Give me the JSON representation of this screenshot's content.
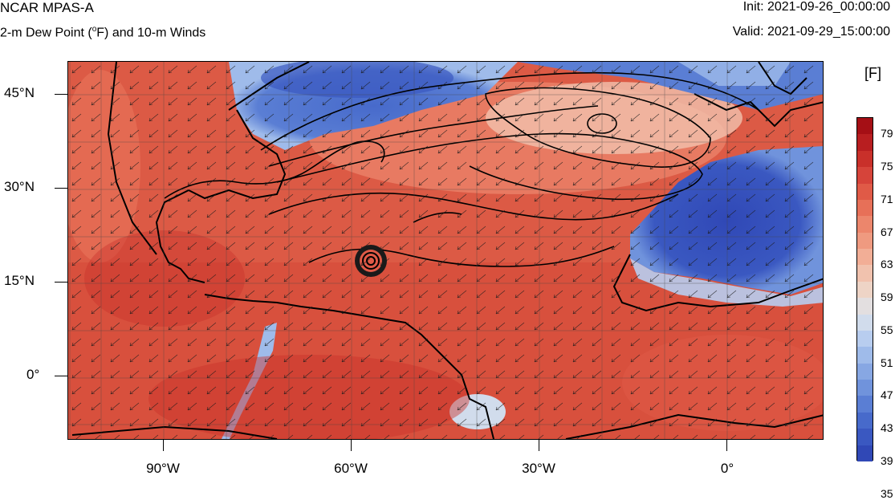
{
  "header": {
    "title": "NCAR MPAS-A",
    "subtitle_pre": "2-m Dew Point (",
    "subtitle_sup": "o",
    "subtitle_post": "F) and 10-m Winds",
    "init": "Init: 2021-09-26_00:00:00",
    "valid": "Valid: 2021-09-29_15:00:00"
  },
  "map": {
    "lat_labels": [
      "45°N",
      "30°N",
      "15°N",
      "0°"
    ],
    "lon_labels": [
      "90°W",
      "60°W",
      "30°W",
      "0°"
    ]
  },
  "colorbar": {
    "unit": "[F]",
    "labels": [
      "79",
      "75",
      "71",
      "67",
      "63",
      "59",
      "55",
      "51",
      "47",
      "43",
      "39",
      "35"
    ],
    "colors": [
      "#a50f15",
      "#b81e20",
      "#c9302a",
      "#d6443a",
      "#e05a47",
      "#e77058",
      "#ec866c",
      "#ef9a80",
      "#f2ae96",
      "#f1c2ae",
      "#eed4c6",
      "#e3dfe0",
      "#d1dcec",
      "#b8cdef",
      "#9fbbea",
      "#87a7e3",
      "#7093dc",
      "#5a7ed4",
      "#476acb",
      "#3a58c1",
      "#3048b6"
    ]
  }
}
